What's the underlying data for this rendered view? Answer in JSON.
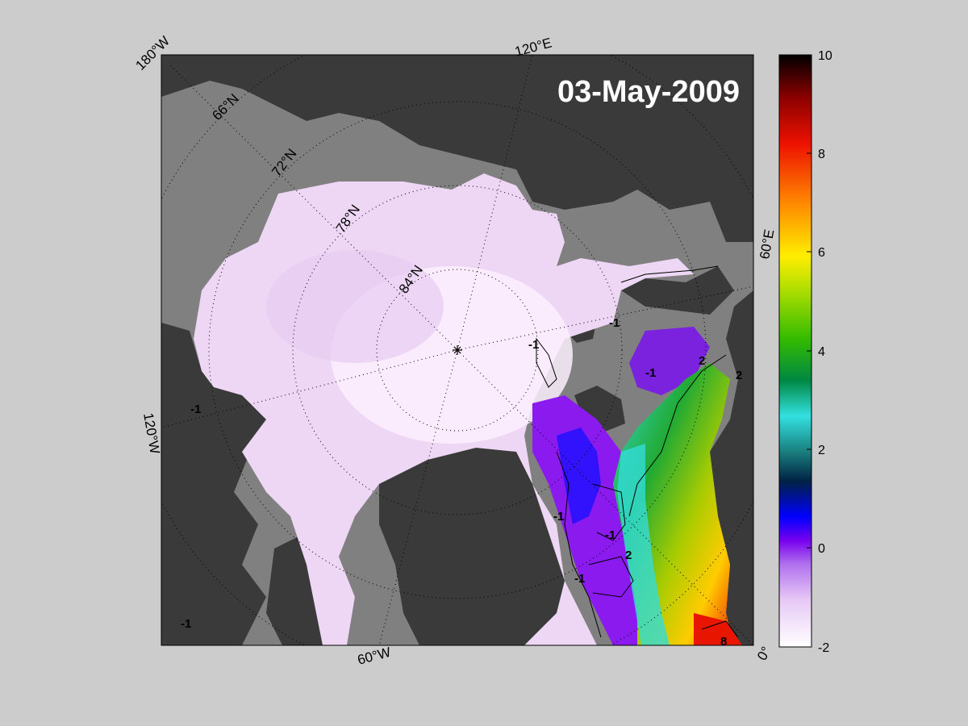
{
  "map": {
    "date_label": "03-May-2009",
    "longitude_labels": [
      "180°W",
      "120°E",
      "60°E",
      "0°",
      "60°W",
      "120°W"
    ],
    "latitude_labels": [
      "66°N",
      "72°N",
      "78°N",
      "84°N"
    ],
    "contour_labels": [
      "-1",
      "-1",
      "-1",
      "-1",
      "-1",
      "-1",
      "-1",
      "-1",
      "2",
      "2",
      "2",
      "8"
    ],
    "colors": {
      "background": "#cccccc",
      "land": "#3a3a3a",
      "ocean_nodata": "#808080",
      "ice_cold": "#efdcf5"
    }
  },
  "colorbar": {
    "min": -2,
    "max": 10,
    "ticks": [
      "10",
      "8",
      "6",
      "4",
      "2",
      "0",
      "-2"
    ],
    "colors": [
      "#ffffff",
      "#cc88ee",
      "#8800ee",
      "#0000ff",
      "#002244",
      "#22dddd",
      "#00aa44",
      "#44cc00",
      "#ffee00",
      "#ff8800",
      "#ee0000",
      "#990000",
      "#000000"
    ]
  }
}
